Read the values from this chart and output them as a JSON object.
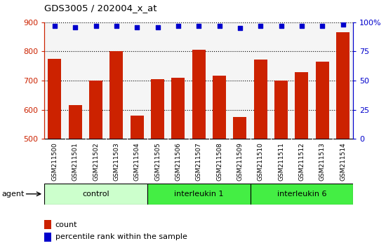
{
  "title": "GDS3005 / 202004_x_at",
  "samples": [
    "GSM211500",
    "GSM211501",
    "GSM211502",
    "GSM211503",
    "GSM211504",
    "GSM211505",
    "GSM211506",
    "GSM211507",
    "GSM211508",
    "GSM211509",
    "GSM211510",
    "GSM211511",
    "GSM211512",
    "GSM211513",
    "GSM211514"
  ],
  "counts": [
    775,
    615,
    700,
    800,
    580,
    705,
    710,
    805,
    718,
    575,
    773,
    700,
    730,
    765,
    865
  ],
  "percentiles": [
    97,
    96,
    97,
    97,
    96,
    96,
    97,
    97,
    97,
    95,
    97,
    97,
    97,
    97,
    98
  ],
  "groups": [
    {
      "label": "control",
      "start": 0,
      "end": 5,
      "color": "#ccffcc"
    },
    {
      "label": "interleukin 1",
      "start": 5,
      "end": 10,
      "color": "#44ee44"
    },
    {
      "label": "interleukin 6",
      "start": 10,
      "end": 15,
      "color": "#44ee44"
    }
  ],
  "ylim_left": [
    500,
    900
  ],
  "ylim_right": [
    0,
    100
  ],
  "yticks_left": [
    500,
    600,
    700,
    800,
    900
  ],
  "yticks_right": [
    0,
    25,
    50,
    75,
    100
  ],
  "bar_color": "#cc2200",
  "dot_color": "#0000cc",
  "plot_bg": "#f5f5f5",
  "grid_color": "#000000",
  "left_axis_color": "#cc2200",
  "right_axis_color": "#0000cc",
  "tick_box_color": "#d8d8d8",
  "fig_width": 5.5,
  "fig_height": 3.54,
  "dpi": 100
}
